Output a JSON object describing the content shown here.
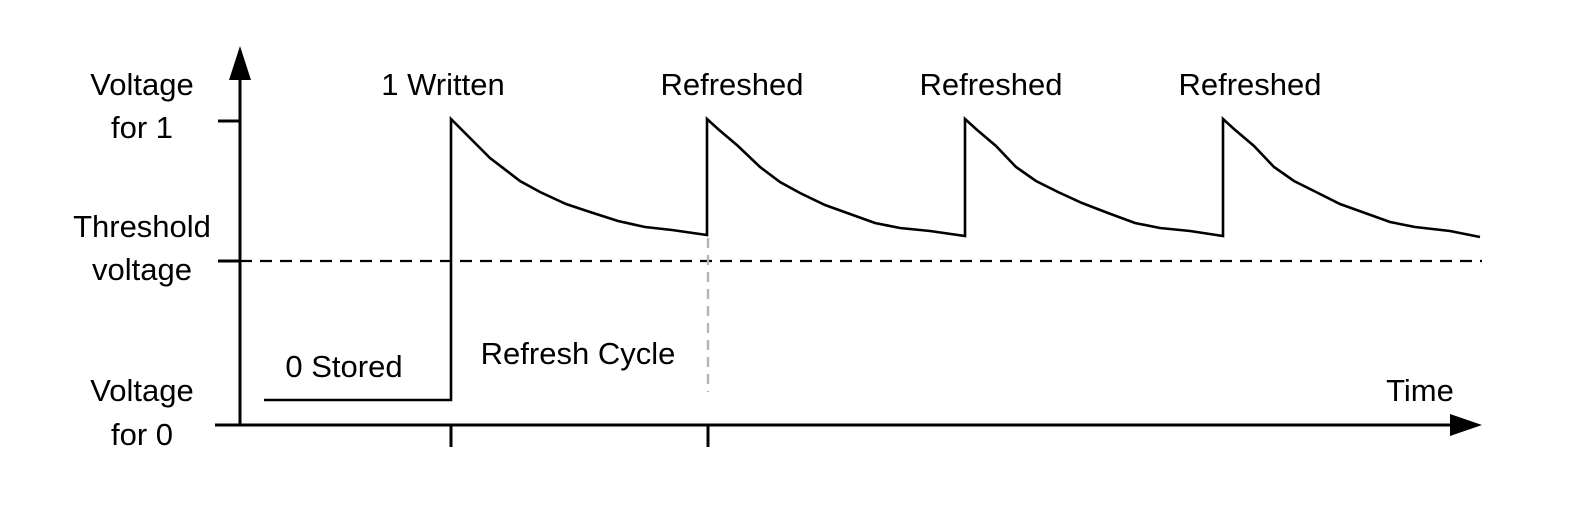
{
  "y_labels": {
    "voltage_for_1": [
      "Voltage",
      "for 1"
    ],
    "threshold": [
      "Threshold",
      "voltage"
    ],
    "voltage_for_0": [
      "Voltage",
      "for 0"
    ]
  },
  "x_label": "Time",
  "events": {
    "written": "1 Written",
    "refreshed": [
      "Refreshed",
      "Refreshed",
      "Refreshed"
    ]
  },
  "annotations": {
    "stored_zero": "0 Stored",
    "refresh_cycle": "Refresh Cycle"
  },
  "colors": {
    "line": "#000000",
    "refresh_marker": "#b5b5b5",
    "background": "#ffffff"
  }
}
